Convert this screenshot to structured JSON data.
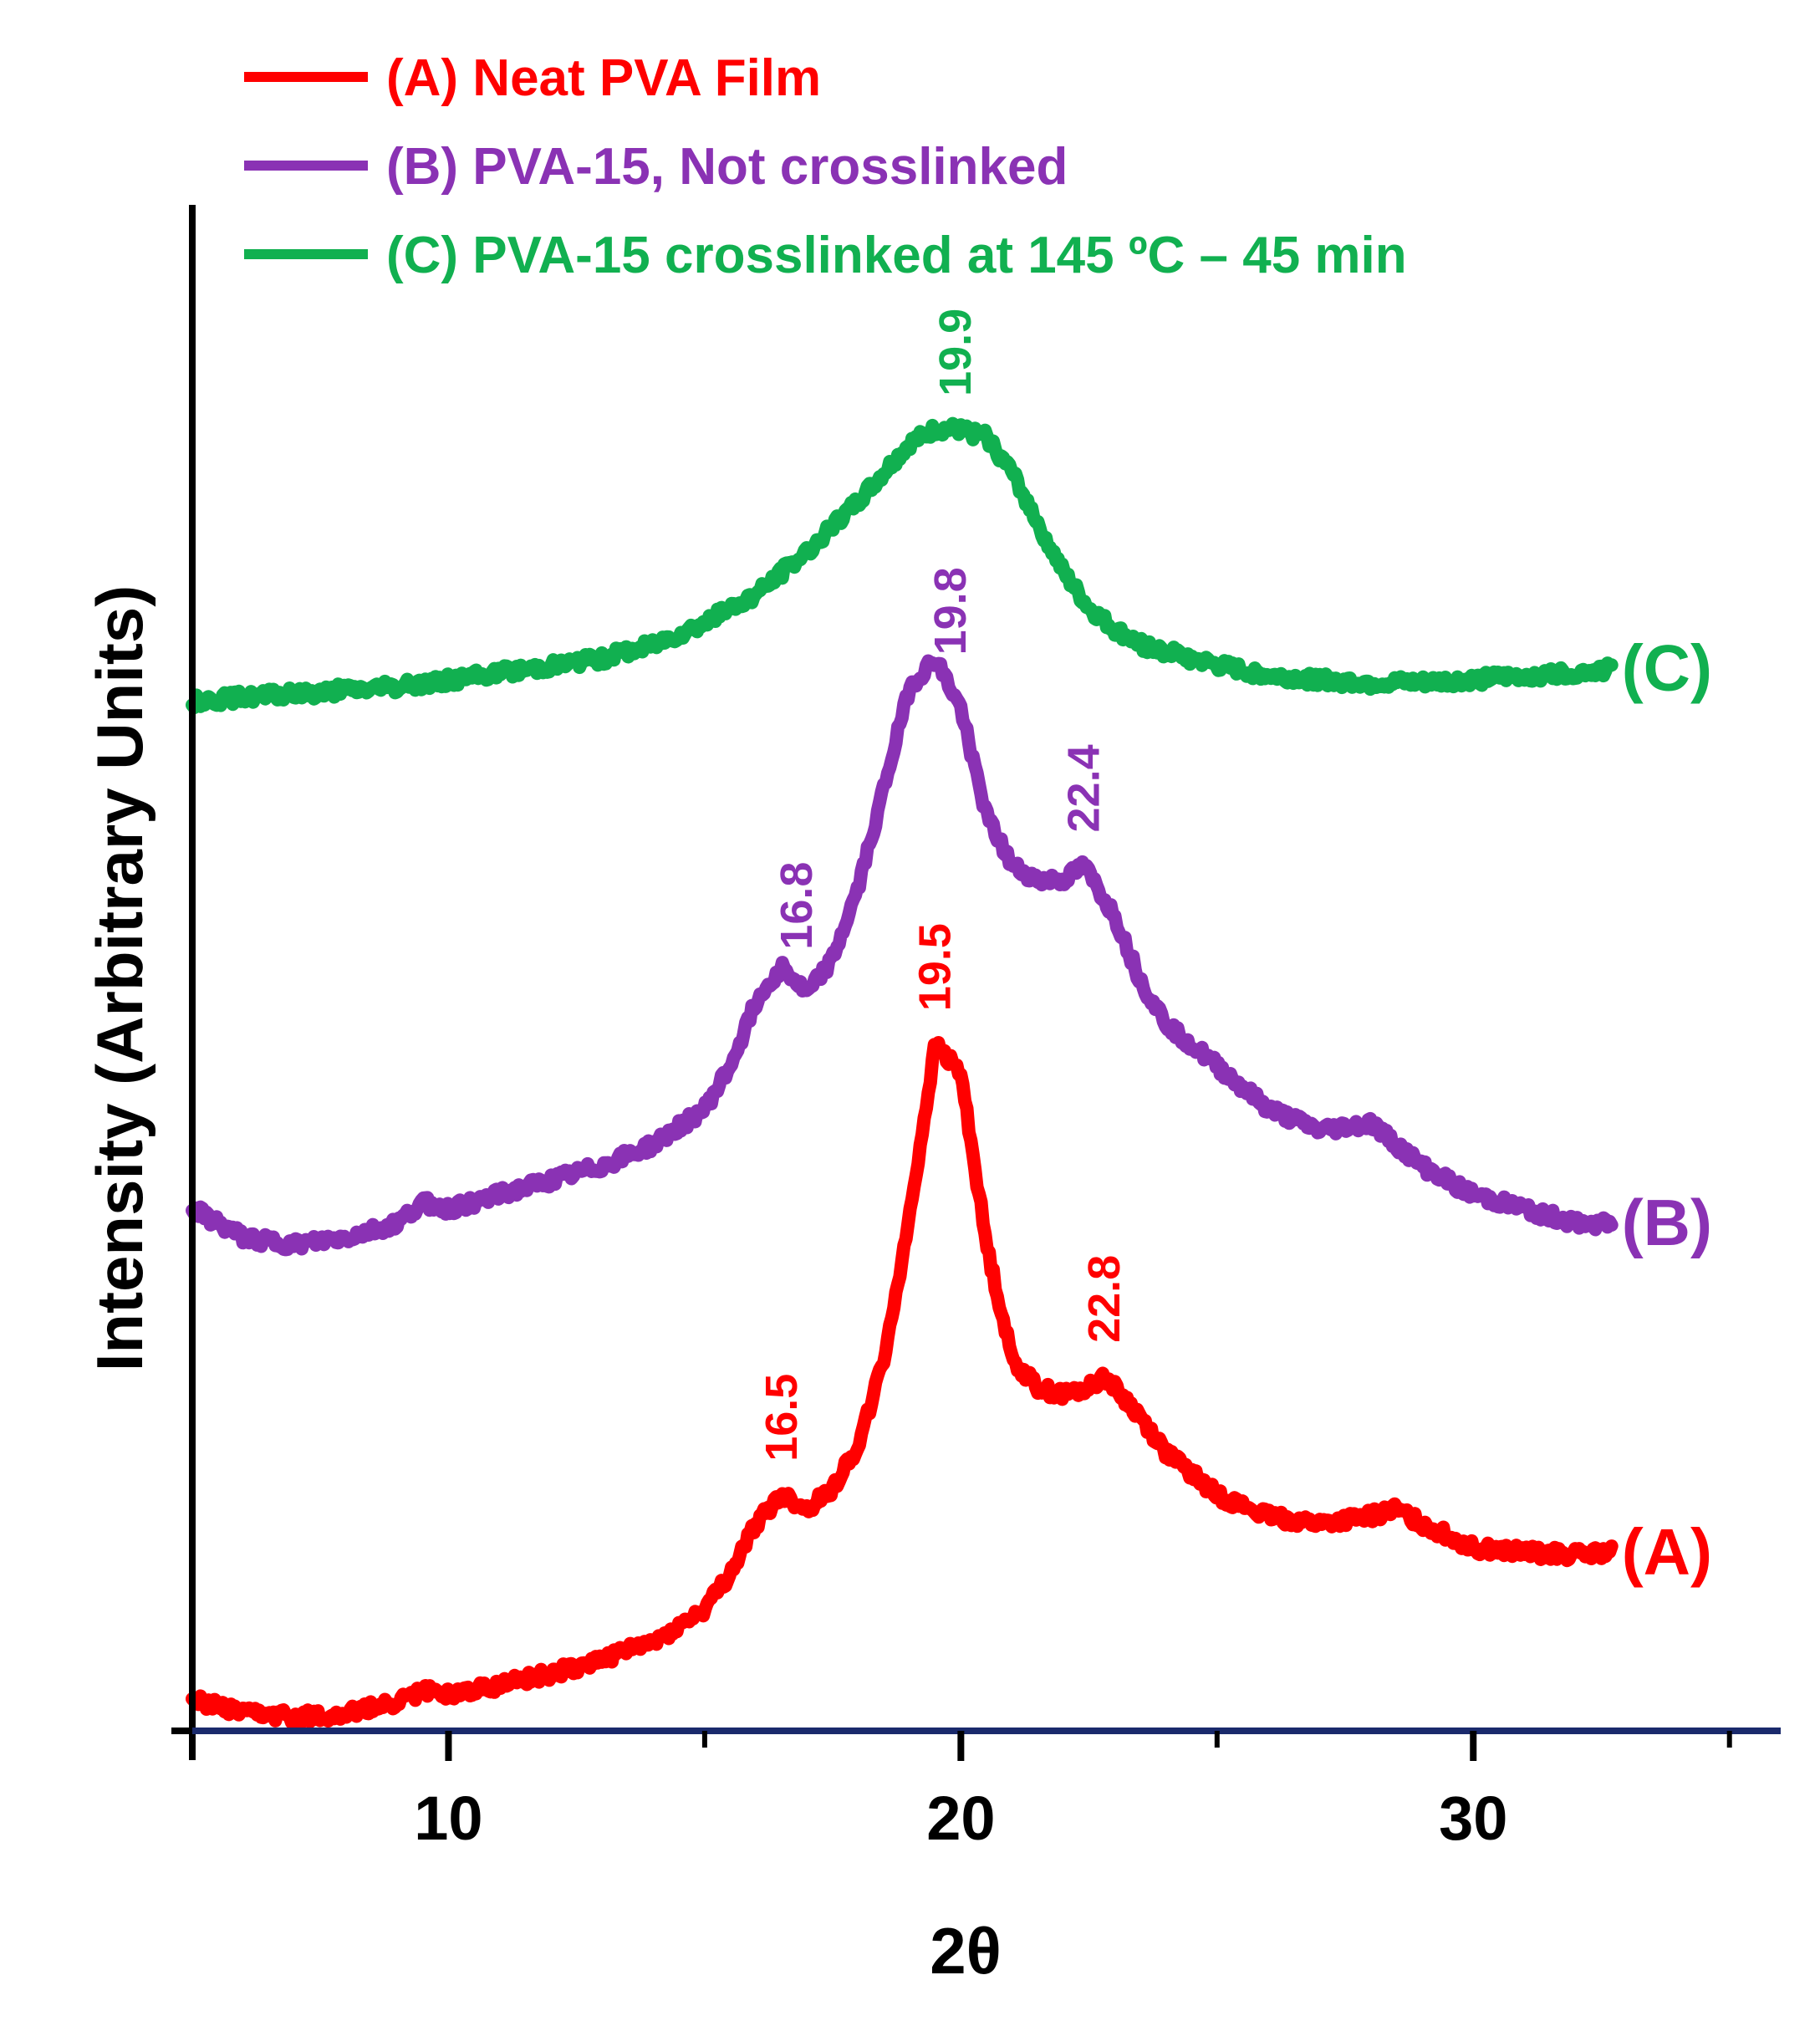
{
  "chart_data": {
    "type": "line",
    "title": "",
    "xlabel": "2θ",
    "ylabel": "Intensity (Arbitrary Units)",
    "xlim": [
      5,
      36
    ],
    "x_ticks": [
      10,
      20,
      30
    ],
    "x_minor_ticks": [
      15,
      25,
      35
    ],
    "ylim": [
      0,
      100
    ],
    "y_ticks_shown": false,
    "grid": false,
    "legend": "top-left",
    "colors": {
      "A": "#ff0000",
      "B": "#8a32b4",
      "C": "#11b050",
      "axis": "#000000",
      "baseline": "#1a2a6c"
    },
    "series": [
      {
        "key": "A",
        "name": "(A) Neat PVA Film",
        "curve_label": "(A)",
        "color": "#ff0000",
        "x": [
          5.0,
          6.0,
          7.0,
          8.0,
          9.0,
          9.5,
          10.0,
          11.0,
          12.0,
          13.0,
          14.0,
          15.0,
          15.5,
          16.0,
          16.5,
          17.0,
          17.5,
          18.0,
          18.5,
          19.0,
          19.5,
          20.0,
          20.5,
          21.0,
          21.5,
          22.0,
          22.5,
          22.8,
          23.5,
          24.0,
          25.0,
          26.0,
          27.0,
          28.0,
          28.5,
          29.0,
          30.0,
          31.0,
          32.0,
          32.7
        ],
        "y": [
          2.2,
          1.2,
          1.0,
          1.2,
          2.0,
          2.8,
          2.6,
          3.2,
          4.0,
          5.0,
          6.2,
          8.5,
          11.0,
          14.5,
          16.5,
          15.5,
          17.0,
          20.0,
          26.0,
          36.0,
          48.0,
          46.0,
          34.0,
          26.0,
          24.0,
          23.5,
          24.0,
          24.8,
          22.0,
          19.5,
          16.5,
          15.0,
          14.5,
          15.0,
          15.5,
          14.5,
          12.8,
          12.5,
          12.3,
          12.5
        ],
        "peaks": [
          16.5,
          19.5,
          22.8
        ]
      },
      {
        "key": "B",
        "name": "(B) PVA-15, Not crosslinked",
        "curve_label": "(B)",
        "color": "#8a32b4",
        "x": [
          5.0,
          6.0,
          7.0,
          8.0,
          9.0,
          9.5,
          10.0,
          11.0,
          12.0,
          13.0,
          14.0,
          15.0,
          15.5,
          16.0,
          16.5,
          17.0,
          17.5,
          18.0,
          18.5,
          19.0,
          19.5,
          20.0,
          20.5,
          21.0,
          21.5,
          22.0,
          22.4,
          23.0,
          23.5,
          24.0,
          25.0,
          26.0,
          27.0,
          28.0,
          29.0,
          30.0,
          31.0,
          32.0,
          32.7
        ],
        "y": [
          36.5,
          34.5,
          34.0,
          34.5,
          35.5,
          37.0,
          36.5,
          37.5,
          38.5,
          39.5,
          41.0,
          43.5,
          46.5,
          51.0,
          53.5,
          51.5,
          54.0,
          59.0,
          66.0,
          73.0,
          75.0,
          71.5,
          64.0,
          60.5,
          59.5,
          59.5,
          60.5,
          57.0,
          52.5,
          49.5,
          46.5,
          43.5,
          42.0,
          42.5,
          39.5,
          37.5,
          36.5,
          35.5,
          35.5
        ],
        "peaks": [
          16.8,
          19.8,
          22.4
        ]
      },
      {
        "key": "C",
        "name": "(C) PVA-15 crosslinked at 145 ºC – 45 min",
        "curve_label": "(C)",
        "color": "#11b050",
        "x": [
          5.0,
          6.0,
          7.0,
          8.0,
          9.0,
          10.0,
          11.0,
          12.0,
          13.0,
          14.0,
          15.0,
          16.0,
          17.0,
          18.0,
          18.5,
          19.0,
          19.5,
          19.9,
          20.5,
          21.0,
          21.5,
          22.0,
          22.5,
          23.0,
          23.5,
          24.0,
          25.0,
          26.0,
          27.0,
          28.0,
          29.0,
          30.0,
          31.0,
          32.0,
          32.7
        ],
        "y": [
          72.0,
          72.3,
          72.5,
          72.8,
          73.0,
          73.5,
          74.0,
          74.5,
          75.0,
          76.0,
          77.5,
          79.5,
          82.5,
          86.0,
          88.0,
          90.0,
          91.0,
          91.0,
          90.5,
          88.0,
          84.5,
          81.0,
          78.5,
          77.0,
          76.0,
          75.5,
          74.5,
          73.8,
          73.5,
          73.3,
          73.3,
          73.5,
          73.8,
          74.0,
          74.3
        ],
        "peaks": [
          19.9
        ]
      }
    ],
    "annotations": [
      {
        "series": "A",
        "x": 16.5,
        "text": "16.5"
      },
      {
        "series": "A",
        "x": 19.5,
        "text": "19.5"
      },
      {
        "series": "A",
        "x": 22.8,
        "text": "22.8"
      },
      {
        "series": "B",
        "x": 16.8,
        "text": "16.8"
      },
      {
        "series": "B",
        "x": 19.8,
        "text": "19.8"
      },
      {
        "series": "B",
        "x": 22.4,
        "text": "22.4"
      },
      {
        "series": "C",
        "x": 19.9,
        "text": "19.9"
      }
    ]
  }
}
